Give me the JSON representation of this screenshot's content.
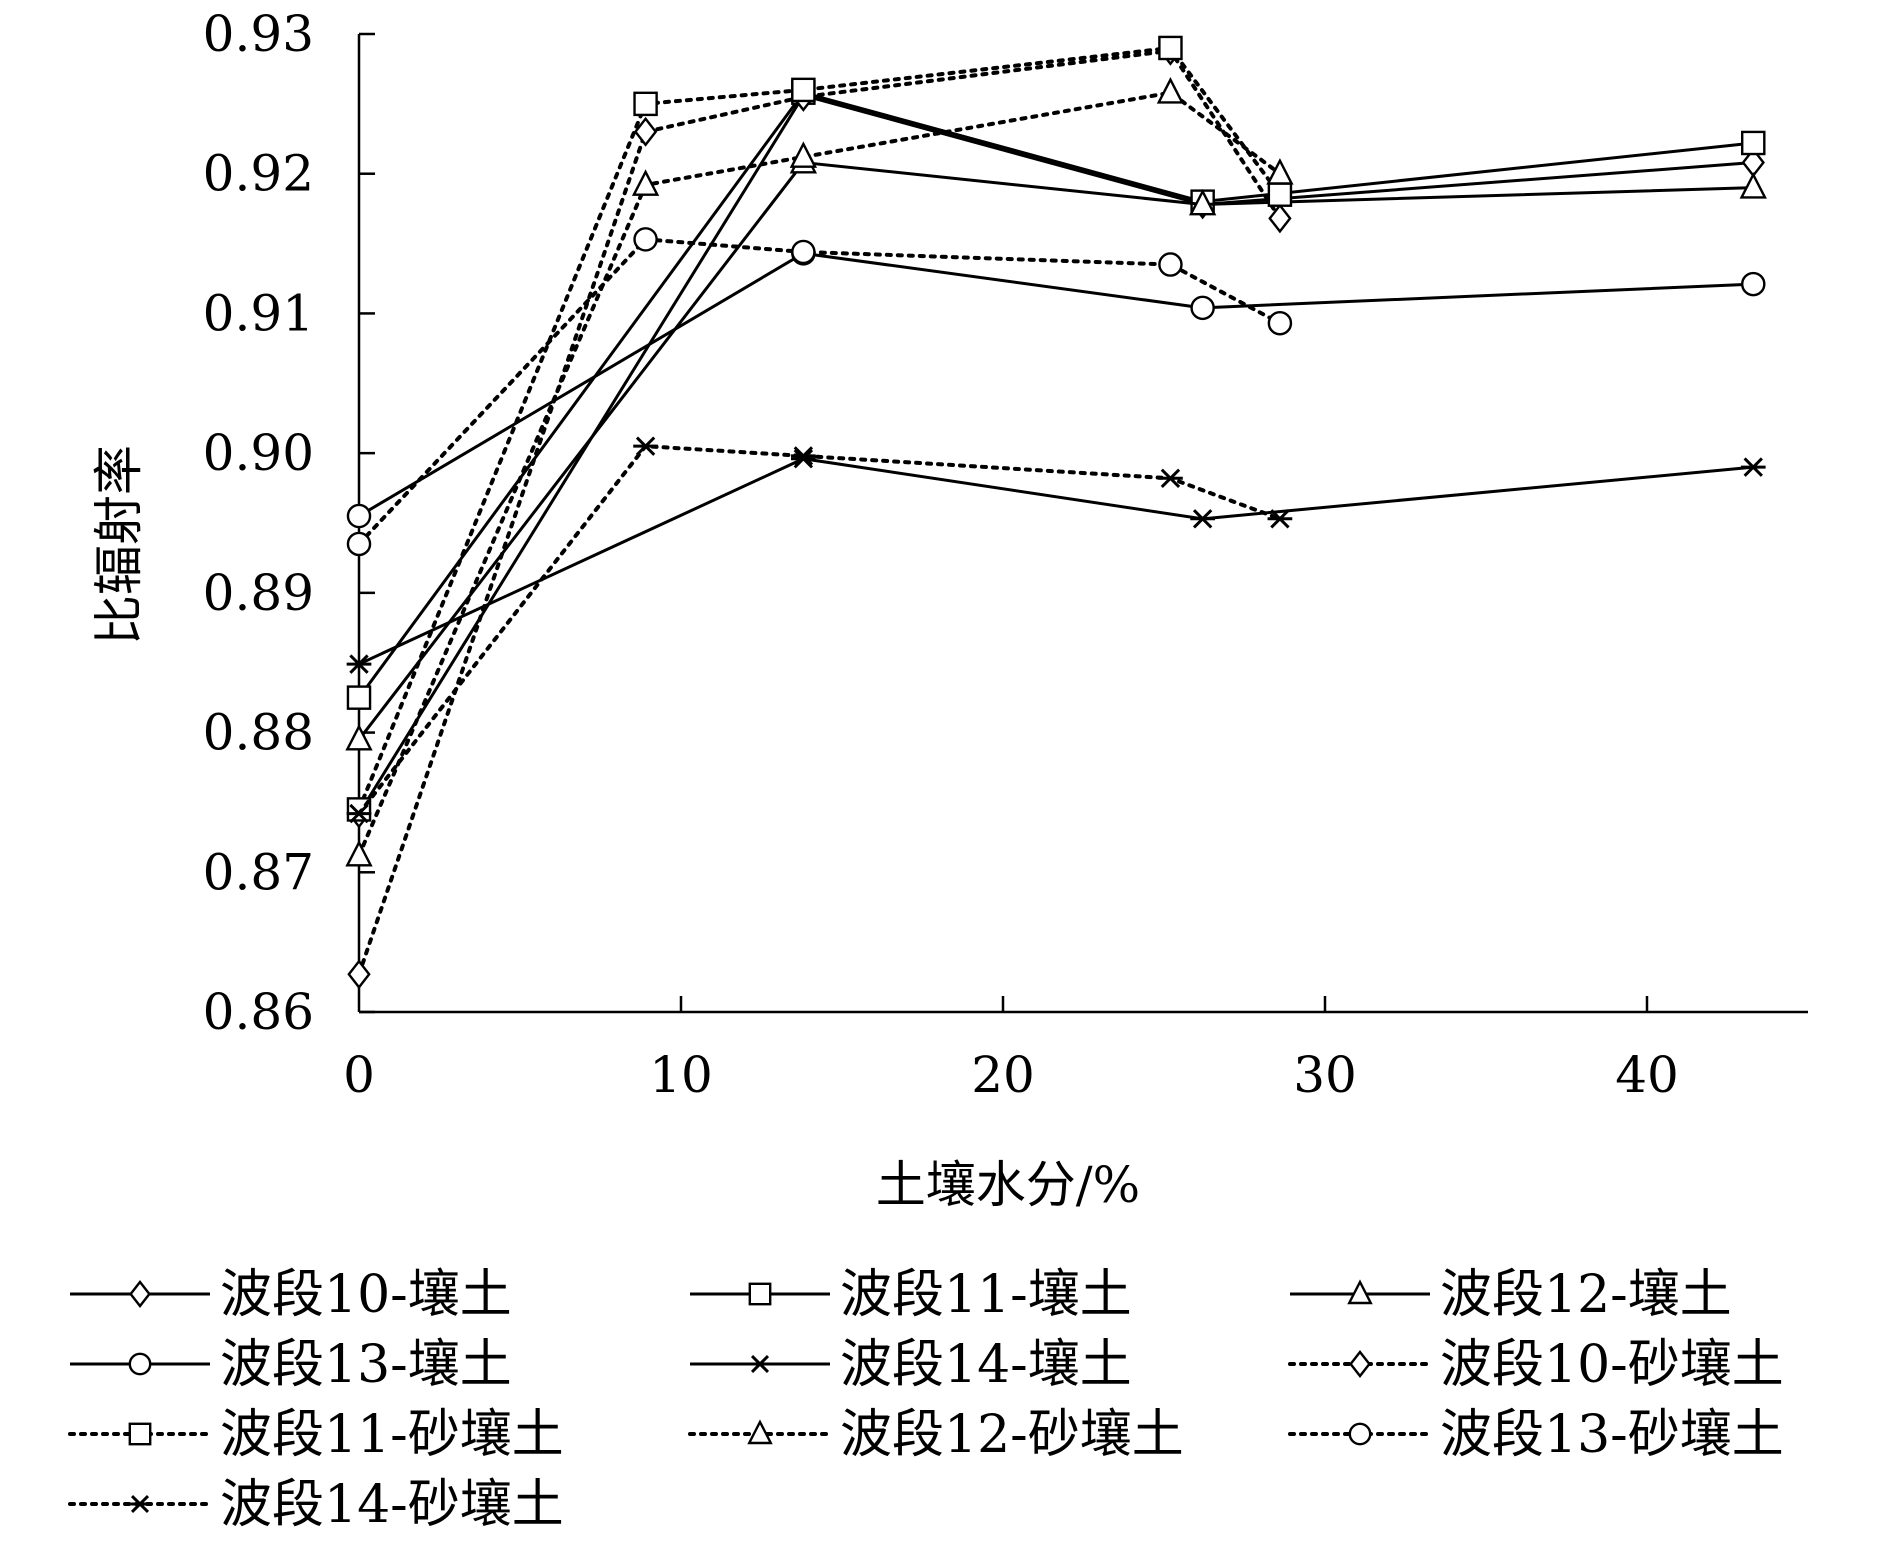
{
  "chart_data": {
    "type": "line",
    "title": "",
    "xlabel": "土壤水分/%",
    "ylabel": "比辐射率",
    "xlim": [
      0,
      45
    ],
    "ylim": [
      0.86,
      0.93
    ],
    "xticks": [
      0,
      10,
      20,
      30,
      40
    ],
    "xtick_labels": [
      "0",
      "10",
      "20",
      "30",
      "40"
    ],
    "yticks": [
      0.86,
      0.87,
      0.88,
      0.89,
      0.9,
      0.91,
      0.92,
      0.93
    ],
    "ytick_labels": [
      "0.86",
      "0.87",
      "0.88",
      "0.89",
      "0.90",
      "0.91",
      "0.92",
      "0.93"
    ],
    "legend_position": "bottom",
    "series": [
      {
        "name": "波段10-壤土",
        "marker": "diamond",
        "style": "solid",
        "x": [
          0,
          13.8,
          26.2,
          43.3
        ],
        "y": [
          0.8742,
          0.9256,
          0.9178,
          0.9208
        ]
      },
      {
        "name": "波段11-壤土",
        "marker": "square",
        "style": "solid",
        "x": [
          0,
          13.8,
          26.2,
          43.3
        ],
        "y": [
          0.8825,
          0.9258,
          0.918,
          0.9222
        ]
      },
      {
        "name": "波段12-壤土",
        "marker": "triangle",
        "style": "solid",
        "x": [
          0,
          13.8,
          26.2,
          43.3
        ],
        "y": [
          0.8795,
          0.9208,
          0.9178,
          0.919
        ]
      },
      {
        "name": "波段13-壤土",
        "marker": "circle",
        "style": "solid",
        "x": [
          0,
          13.8,
          26.2,
          43.3
        ],
        "y": [
          0.8955,
          0.9143,
          0.9104,
          0.9121
        ]
      },
      {
        "name": "波段14-壤土",
        "marker": "asterisk",
        "style": "solid",
        "x": [
          0,
          13.8,
          26.2,
          43.3
        ],
        "y": [
          0.8849,
          0.8996,
          0.8953,
          0.899
        ]
      },
      {
        "name": "波段10-砂壤土",
        "marker": "diamond",
        "style": "dotted",
        "x": [
          0,
          8.9,
          13.8,
          25.2,
          28.6
        ],
        "y": [
          0.8627,
          0.923,
          0.9255,
          0.9288,
          0.9168
        ]
      },
      {
        "name": "波段11-砂壤土",
        "marker": "square",
        "style": "dotted",
        "x": [
          0,
          8.9,
          13.8,
          25.2,
          28.6
        ],
        "y": [
          0.8745,
          0.925,
          0.926,
          0.929,
          0.9185
        ]
      },
      {
        "name": "波段12-砂壤土",
        "marker": "triangle",
        "style": "dotted",
        "x": [
          0,
          8.9,
          13.8,
          25.2,
          28.6
        ],
        "y": [
          0.8712,
          0.9192,
          0.9212,
          0.9258,
          0.92
        ]
      },
      {
        "name": "波段13-砂壤土",
        "marker": "circle",
        "style": "dotted",
        "x": [
          0,
          8.9,
          13.8,
          25.2,
          28.6
        ],
        "y": [
          0.8935,
          0.9153,
          0.9144,
          0.9135,
          0.9093
        ]
      },
      {
        "name": "波段14-砂壤土",
        "marker": "asterisk",
        "style": "dotted",
        "x": [
          0,
          8.9,
          13.8,
          25.2,
          28.6
        ],
        "y": [
          0.8742,
          0.9005,
          0.8998,
          0.8982,
          0.8953
        ]
      }
    ]
  }
}
